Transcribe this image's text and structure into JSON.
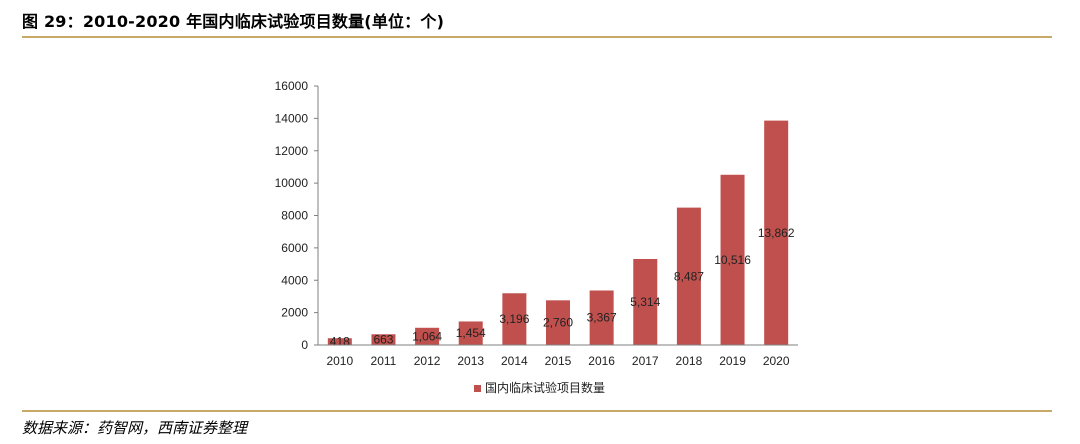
{
  "figure": {
    "title": "图 29：2010-2020 年国内临床试验项目数量(单位：个)",
    "source": "数据来源：药智网，西南证券整理"
  },
  "chart_data": {
    "type": "bar",
    "categories": [
      "2010",
      "2011",
      "2012",
      "2013",
      "2014",
      "2015",
      "2016",
      "2017",
      "2018",
      "2019",
      "2020"
    ],
    "series": [
      {
        "name": "国内临床试验项目数量",
        "values": [
          418,
          663,
          1064,
          1454,
          3196,
          2760,
          3367,
          5314,
          8487,
          10516,
          13862
        ],
        "labels": [
          "418",
          "663",
          "1,064",
          "1,454",
          "3,196",
          "2,760",
          "3,367",
          "5,314",
          "8,487",
          "10,516",
          "13,862"
        ],
        "color": "#c0504d"
      }
    ],
    "ylim": [
      0,
      16000
    ],
    "yticks": [
      0,
      2000,
      4000,
      6000,
      8000,
      10000,
      12000,
      14000,
      16000
    ],
    "grid": false,
    "legend_position": "bottom-center"
  }
}
